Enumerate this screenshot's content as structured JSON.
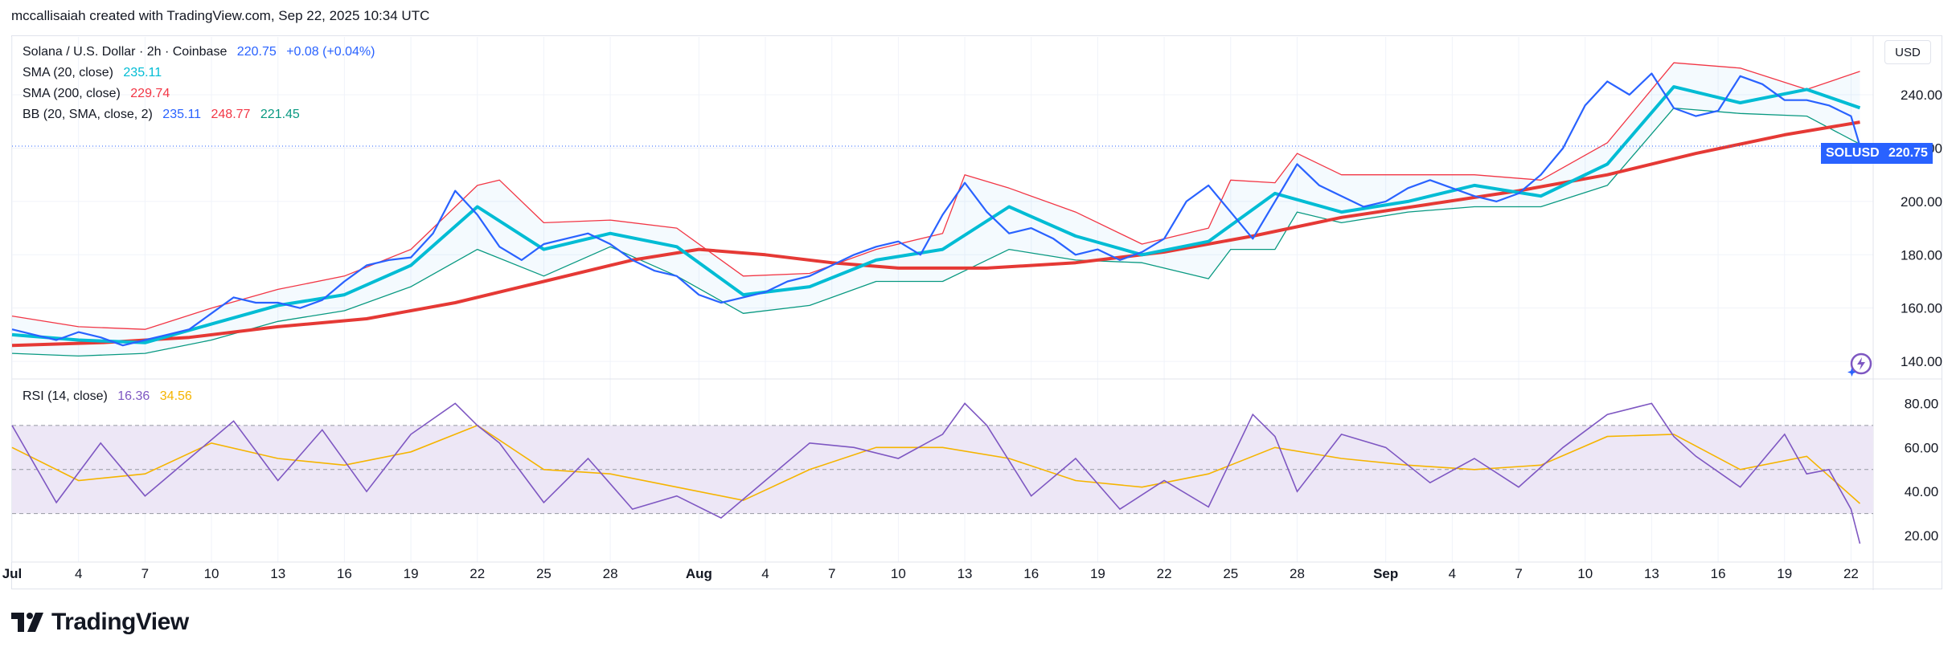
{
  "header": {
    "credit": "mccallisaiah created with TradingView.com, Sep 22, 2025 10:34 UTC"
  },
  "legend": {
    "symbol": "Solana / U.S. Dollar · 2h · Coinbase",
    "last": "220.75",
    "change": "+0.08 (+0.04%)",
    "sma20_label": "SMA (20, close)",
    "sma20_value": "235.11",
    "sma200_label": "SMA (200, close)",
    "sma200_value": "229.74",
    "bb_label": "BB (20, SMA, close, 2)",
    "bb_basis": "235.11",
    "bb_upper": "248.77",
    "bb_lower": "221.45",
    "rsi_label": "RSI (14, close)",
    "rsi_value": "16.36",
    "rsi_ma": "34.56"
  },
  "currency": "USD",
  "price_tag": {
    "symbol": "SOLUSD",
    "value": "220.75"
  },
  "footer": {
    "brand": "TradingView"
  },
  "colors": {
    "price": "#2962ff",
    "sma20": "#00bcd4",
    "sma200": "#e53935",
    "bb_upper": "#f23645",
    "bb_lower": "#089981",
    "rsi": "#7e57c2",
    "rsi_ma": "#f5b400",
    "rsi_band": "#ede7f6"
  },
  "chart_data": [
    {
      "type": "line",
      "title": "Solana / U.S. Dollar · 2h · Coinbase",
      "y_axis_ticks": [
        "240.00",
        "220.00",
        "200.00",
        "180.00",
        "160.00",
        "140.00"
      ],
      "ylim": [
        134,
        262
      ],
      "x_ticks": [
        "Jul",
        "4",
        "7",
        "10",
        "13",
        "16",
        "19",
        "22",
        "25",
        "28",
        "Aug",
        "4",
        "7",
        "10",
        "13",
        "16",
        "19",
        "22",
        "25",
        "28",
        "Sep",
        "4",
        "7",
        "10",
        "13",
        "16",
        "19",
        "22"
      ],
      "x_tick_day_index": [
        0,
        3,
        6,
        9,
        12,
        15,
        18,
        21,
        24,
        27,
        31,
        34,
        37,
        40,
        43,
        46,
        49,
        52,
        55,
        58,
        62,
        65,
        68,
        71,
        74,
        77,
        80,
        83
      ],
      "series": [
        {
          "name": "Solana / U.S. Dollar",
          "x_day": [
            0,
            1,
            2,
            3,
            4,
            5,
            6,
            7,
            8,
            9,
            10,
            11,
            12,
            13,
            14,
            15,
            16,
            17,
            18,
            19,
            20,
            21,
            22,
            23,
            24,
            25,
            26,
            27,
            28,
            29,
            30,
            31,
            32,
            33,
            34,
            35,
            36,
            37,
            38,
            39,
            40,
            41,
            42,
            43,
            44,
            45,
            46,
            47,
            48,
            49,
            50,
            51,
            52,
            53,
            54,
            55,
            56,
            57,
            58,
            59,
            60,
            61,
            62,
            63,
            64,
            65,
            66,
            67,
            68,
            69,
            70,
            71,
            72,
            73,
            74,
            75,
            76,
            77,
            78,
            79,
            80,
            81,
            82,
            83,
            83.4
          ],
          "values": [
            152,
            150,
            148,
            151,
            149,
            146,
            148,
            150,
            152,
            158,
            164,
            162,
            162,
            160,
            163,
            170,
            176,
            178,
            179,
            188,
            204,
            195,
            183,
            178,
            184,
            186,
            188,
            184,
            178,
            174,
            172,
            165,
            162,
            164,
            166,
            170,
            172,
            176,
            180,
            183,
            185,
            180,
            195,
            207,
            196,
            188,
            190,
            186,
            180,
            182,
            178,
            181,
            186,
            200,
            206,
            196,
            186,
            200,
            214,
            206,
            202,
            198,
            200,
            205,
            208,
            205,
            202,
            200,
            203,
            210,
            220,
            236,
            245,
            240,
            248,
            235,
            232,
            234,
            247,
            244,
            238,
            238,
            236,
            232,
            220.75
          ]
        },
        {
          "name": "SMA (20, close)",
          "x_day": [
            0,
            3,
            6,
            9,
            12,
            15,
            18,
            21,
            24,
            27,
            30,
            33,
            36,
            39,
            42,
            45,
            48,
            51,
            54,
            57,
            60,
            63,
            66,
            69,
            72,
            75,
            78,
            81,
            83.4
          ],
          "values": [
            150,
            148,
            147,
            154,
            161,
            165,
            176,
            198,
            182,
            188,
            183,
            165,
            168,
            178,
            182,
            198,
            187,
            180,
            185,
            203,
            196,
            200,
            206,
            202,
            214,
            243,
            237,
            242,
            235.11
          ]
        },
        {
          "name": "SMA (200, close)",
          "x_day": [
            0,
            4,
            8,
            12,
            16,
            20,
            24,
            28,
            31,
            34,
            37,
            40,
            44,
            48,
            52,
            56,
            60,
            64,
            68,
            72,
            76,
            80,
            83.4
          ],
          "values": [
            146,
            147,
            149,
            153,
            156,
            162,
            170,
            178,
            182,
            180,
            177,
            175,
            175,
            177,
            181,
            187,
            194,
            199,
            204,
            210,
            218,
            225,
            229.74
          ]
        },
        {
          "name": "BB upper",
          "x_day": [
            0,
            3,
            6,
            9,
            12,
            15,
            18,
            21,
            22,
            24,
            27,
            30,
            33,
            36,
            39,
            42,
            43,
            45,
            48,
            51,
            54,
            55,
            57,
            58,
            60,
            63,
            66,
            69,
            72,
            75,
            78,
            81,
            83.4
          ],
          "values": [
            157,
            153,
            152,
            160,
            167,
            172,
            182,
            206,
            208,
            192,
            193,
            190,
            172,
            173,
            182,
            188,
            210,
            205,
            196,
            184,
            190,
            208,
            207,
            218,
            210,
            210,
            210,
            208,
            222,
            252,
            250,
            242,
            248.77
          ]
        },
        {
          "name": "BB lower",
          "x_day": [
            0,
            3,
            6,
            9,
            12,
            15,
            18,
            21,
            24,
            27,
            30,
            33,
            36,
            39,
            42,
            43,
            45,
            48,
            51,
            54,
            55,
            57,
            58,
            60,
            63,
            66,
            69,
            72,
            75,
            78,
            81,
            83.4
          ],
          "values": [
            143,
            142,
            143,
            148,
            155,
            159,
            168,
            182,
            172,
            183,
            172,
            158,
            161,
            170,
            170,
            174,
            182,
            178,
            177,
            171,
            182,
            182,
            196,
            192,
            196,
            198,
            198,
            206,
            235,
            233,
            232,
            221.45
          ]
        }
      ]
    },
    {
      "type": "line",
      "title": "RSI (14, close)",
      "y_axis_ticks": [
        "80.00",
        "60.00",
        "40.00",
        "20.00"
      ],
      "ylim": [
        8,
        90
      ],
      "bands": {
        "upper": 70,
        "middle": 50,
        "lower": 30
      },
      "series": [
        {
          "name": "RSI (14, close)",
          "x_day": [
            0,
            2,
            4,
            6,
            8,
            10,
            12,
            14,
            16,
            18,
            20,
            21,
            22,
            24,
            26,
            28,
            30,
            32,
            34,
            36,
            38,
            40,
            42,
            43,
            44,
            46,
            48,
            50,
            52,
            54,
            56,
            57,
            58,
            60,
            62,
            64,
            66,
            68,
            70,
            72,
            74,
            75,
            76,
            78,
            80,
            81,
            82,
            83,
            83.4
          ],
          "values": [
            70,
            35,
            62,
            38,
            55,
            72,
            45,
            68,
            40,
            66,
            80,
            70,
            62,
            35,
            55,
            32,
            38,
            28,
            45,
            62,
            60,
            55,
            66,
            80,
            70,
            38,
            55,
            32,
            45,
            33,
            75,
            65,
            40,
            66,
            60,
            44,
            55,
            42,
            60,
            75,
            80,
            65,
            56,
            42,
            66,
            48,
            50,
            32,
            16.36
          ]
        },
        {
          "name": "RSI MA",
          "x_day": [
            0,
            3,
            6,
            9,
            12,
            15,
            18,
            21,
            24,
            27,
            30,
            33,
            36,
            39,
            42,
            45,
            48,
            51,
            54,
            57,
            60,
            63,
            66,
            69,
            72,
            75,
            78,
            81,
            83.4
          ],
          "values": [
            60,
            45,
            48,
            62,
            55,
            52,
            58,
            70,
            50,
            48,
            42,
            36,
            50,
            60,
            60,
            55,
            45,
            42,
            48,
            60,
            55,
            52,
            50,
            52,
            65,
            66,
            50,
            56,
            34.56
          ]
        }
      ]
    }
  ]
}
